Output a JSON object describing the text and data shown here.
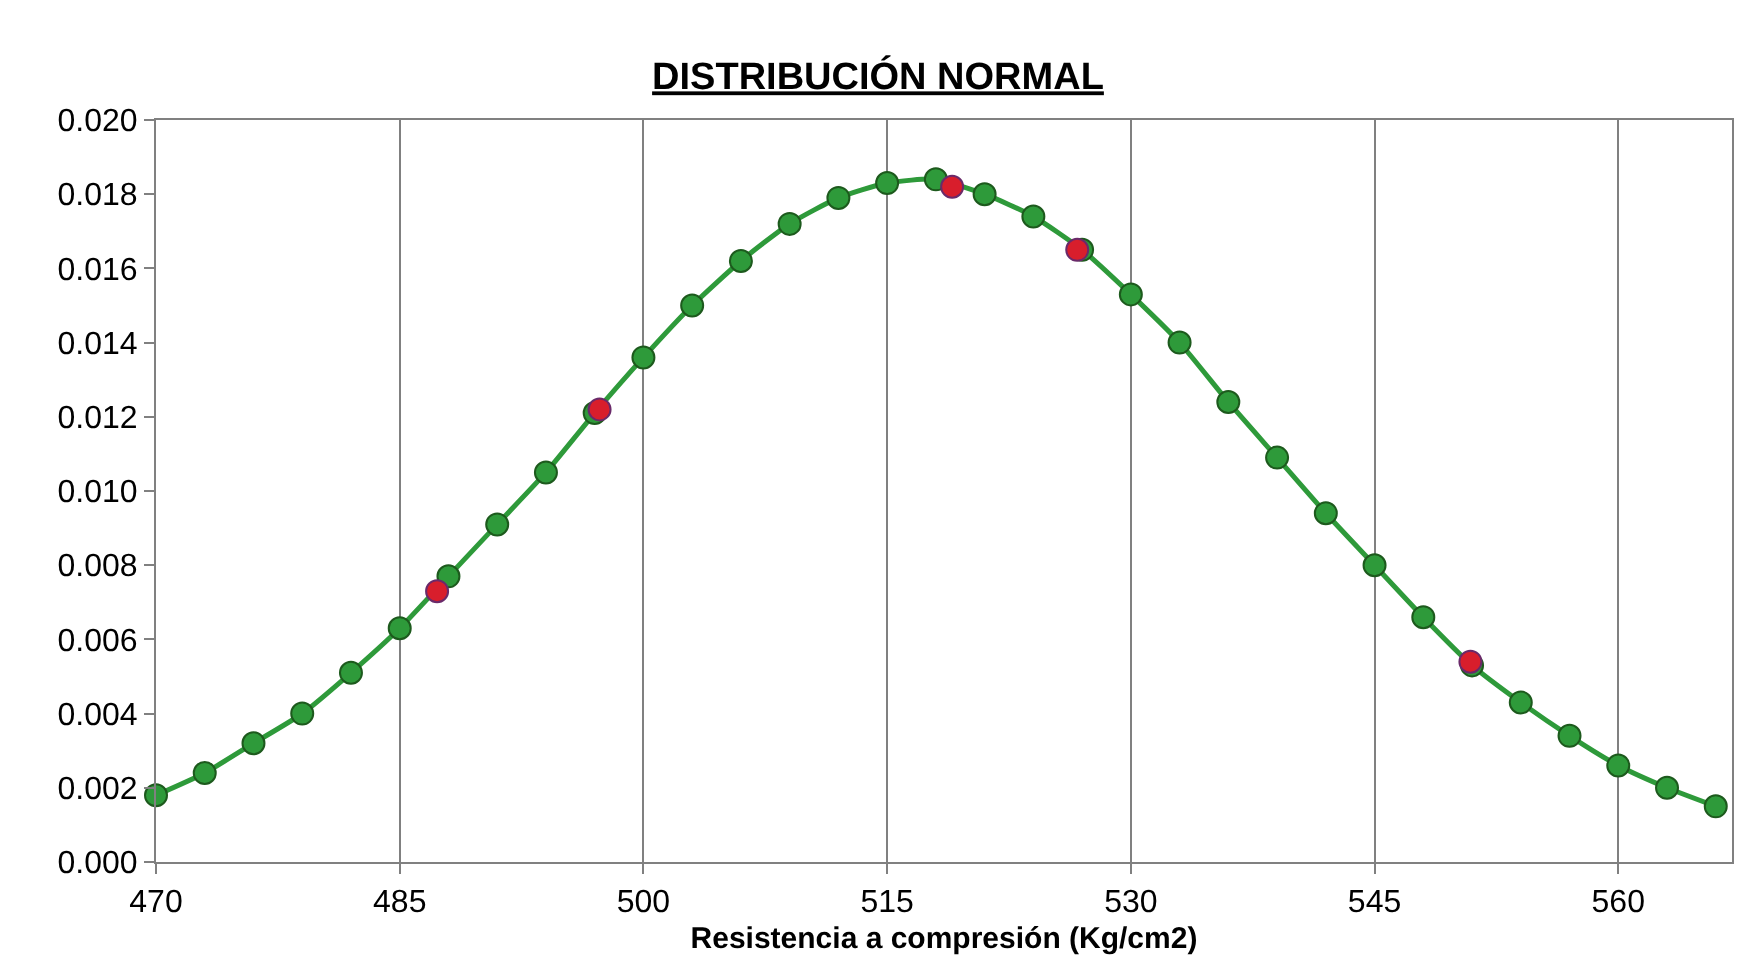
{
  "chart_data": {
    "type": "line",
    "title": "DISTRIBUCIÓN NORMAL",
    "xlabel": "Resistencia a compresión (Kg/cm2)",
    "series": [
      {
        "color": "#2e9a3a",
        "x": [
          470,
          473,
          476,
          479,
          482,
          485,
          488,
          491,
          494,
          497,
          500,
          503,
          506,
          509,
          512,
          515,
          518,
          521,
          524,
          527,
          530,
          533,
          536,
          539,
          542,
          545,
          548,
          551,
          554,
          557,
          560,
          563,
          566
        ],
        "values": [
          0.0018,
          0.0024,
          0.0032,
          0.004,
          0.0051,
          0.0063,
          0.0077,
          0.0091,
          0.0105,
          0.0121,
          0.0136,
          0.015,
          0.0162,
          0.0172,
          0.0179,
          0.0183,
          0.0184,
          0.018,
          0.0174,
          0.0165,
          0.0153,
          0.014,
          0.0124,
          0.0109,
          0.0094,
          0.008,
          0.0066,
          0.0053,
          0.0043,
          0.0034,
          0.0026,
          0.002,
          0.0015
        ]
      },
      {
        "type": "scatter",
        "color": "#d81e2c",
        "x": [
          487.3,
          497.3,
          519.0,
          526.7,
          550.9
        ],
        "values": [
          0.0073,
          0.0122,
          0.0182,
          0.0165,
          0.0054
        ]
      }
    ],
    "xlim": [
      470,
      567
    ],
    "xticks": [
      470,
      485,
      500,
      515,
      530,
      545,
      560
    ],
    "ylim": [
      0,
      0.02
    ],
    "yticks": [
      {
        "value": 0,
        "label": "0.000"
      },
      {
        "value": 0.002,
        "label": "0.002"
      },
      {
        "value": 0.004,
        "label": "0.004"
      },
      {
        "value": 0.006,
        "label": "0.006"
      },
      {
        "value": 0.008,
        "label": "0.008"
      },
      {
        "value": 0.01,
        "label": "0.010"
      },
      {
        "value": 0.012,
        "label": "0.012"
      },
      {
        "value": 0.014,
        "label": "0.014"
      },
      {
        "value": 0.016,
        "label": "0.016"
      },
      {
        "value": 0.018,
        "label": "0.018"
      },
      {
        "value": 0.02,
        "label": "0.020"
      }
    ],
    "grid": "x",
    "marker": "circle",
    "line_style": "solid"
  }
}
